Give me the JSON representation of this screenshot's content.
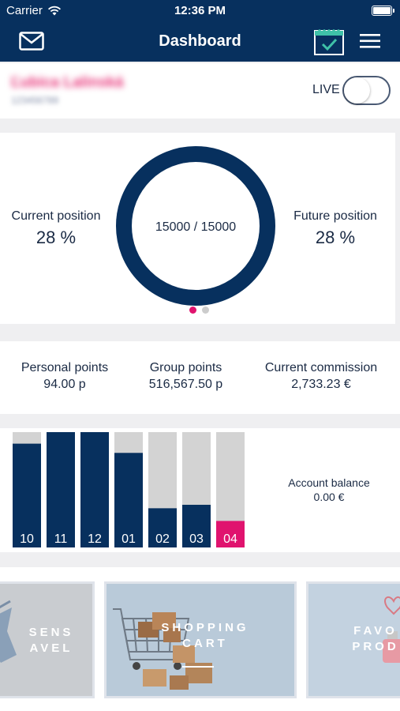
{
  "status_bar": {
    "carrier": "Carrier",
    "time": "12:36 PM"
  },
  "header": {
    "title": "Dashboard"
  },
  "user": {
    "name": "Ľubica Lalinská",
    "sub": "123456789"
  },
  "live": {
    "label": "LIVE",
    "on": false
  },
  "position": {
    "current_label": "Current position",
    "current_value": "28 %",
    "future_label": "Future position",
    "future_value": "28 %",
    "progress_text": "15000 / 15000",
    "progress_fraction": 1.0,
    "page_dots": 2,
    "active_dot": 0
  },
  "points": {
    "personal_label": "Personal points",
    "personal_value": "94.00 p",
    "group_label": "Group points",
    "group_value": "516,567.50 p",
    "commission_label": "Current commission",
    "commission_value": "2,733.23 €"
  },
  "chart_data": {
    "type": "bar",
    "categories": [
      "10",
      "11",
      "12",
      "01",
      "02",
      "03",
      "04"
    ],
    "values": [
      0.9,
      1.0,
      1.0,
      0.82,
      0.34,
      0.37,
      0.23
    ],
    "highlight_index": 6,
    "ylim": [
      0,
      1
    ],
    "colors": {
      "fill": "#07305e",
      "track": "#d3d3d3",
      "highlight": "#e0136e"
    }
  },
  "account": {
    "label": "Account balance",
    "value": "0.00 €"
  },
  "promos": [
    {
      "label_line1": "SENS",
      "label_line2": "AVEL"
    },
    {
      "label_line1": "SHOPPING",
      "label_line2": "CART"
    },
    {
      "label_line1": "FAVO",
      "label_line2": "PROD"
    }
  ],
  "colors": {
    "brand": "#07305e",
    "accent": "#e0136e",
    "background": "#efeff1"
  }
}
